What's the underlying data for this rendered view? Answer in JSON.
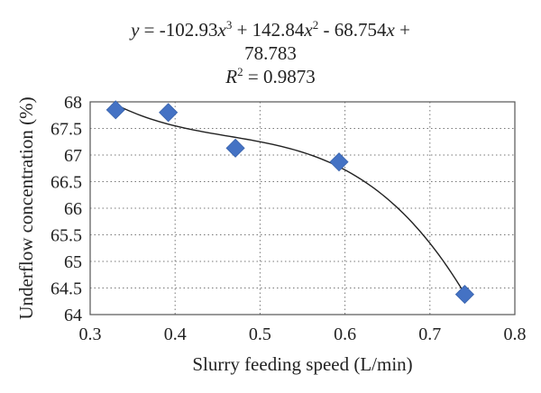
{
  "chart_data": {
    "type": "scatter",
    "equation": {
      "line1_a": "y",
      "line1_b": " = -102.93",
      "line1_c": "x",
      "line1_d": "3",
      "line1_e": " + 142.84",
      "line1_f": "x",
      "line1_g": "2",
      "line1_h": " - 68.754",
      "line1_i": "x",
      "line1_j": " +",
      "line2": "78.783",
      "r2_a": "R",
      "r2_b": "2",
      "r2_c": " = 0.9873"
    },
    "xlabel": "Slurry feeding speed (L/min)",
    "ylabel": "Underflow concentration (%)",
    "xlim": [
      0.3,
      0.8
    ],
    "ylim": [
      64,
      68
    ],
    "x_ticks": [
      "0.3",
      "0.4",
      "0.5",
      "0.6",
      "0.7",
      "0.8"
    ],
    "y_ticks": [
      "64",
      "64.5",
      "65",
      "65.5",
      "66",
      "66.5",
      "67",
      "67.5",
      "68"
    ],
    "grid": true,
    "marker": "diamond",
    "marker_color": "#4472C4",
    "series": [
      {
        "x": [
          0.33,
          0.392,
          0.471,
          0.593,
          0.741
        ],
        "y": [
          67.85,
          67.8,
          67.13,
          66.87,
          64.38
        ]
      }
    ],
    "trendline": {
      "type": "polynomial",
      "order": 3,
      "coefficients": [
        -102.93,
        142.84,
        -68.754,
        78.783
      ]
    }
  }
}
